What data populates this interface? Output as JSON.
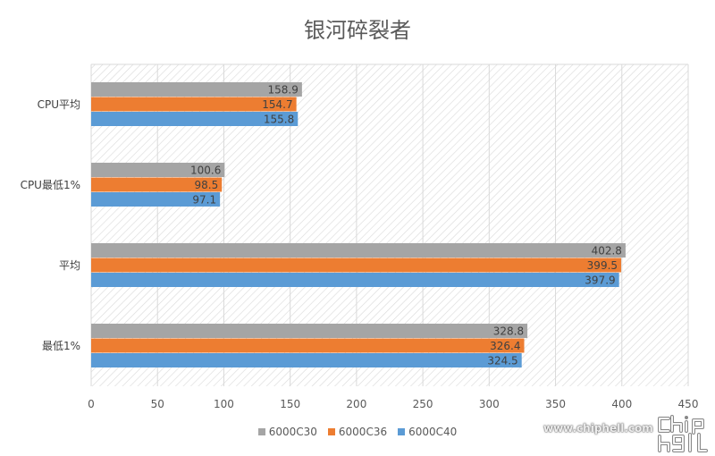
{
  "chart_data": {
    "type": "bar",
    "orientation": "horizontal",
    "title": "银河碎裂者",
    "categories": [
      "CPU平均",
      "CPU最低1%",
      "平均",
      "最低1%"
    ],
    "series": [
      {
        "name": "6000C30",
        "color": "#a5a5a5",
        "values": [
          158.9,
          100.6,
          402.8,
          328.8
        ]
      },
      {
        "name": "6000C36",
        "color": "#ed7d31",
        "values": [
          154.7,
          98.5,
          399.5,
          326.4
        ]
      },
      {
        "name": "6000C40",
        "color": "#5b9bd5",
        "values": [
          155.8,
          97.1,
          397.9,
          324.5
        ]
      }
    ],
    "xlim": [
      0,
      450
    ],
    "xticks": [
      0,
      50,
      100,
      150,
      200,
      250,
      300,
      350,
      400,
      450
    ],
    "grid": true,
    "legend": "bottom",
    "xlabel": "",
    "ylabel": ""
  },
  "watermark": {
    "url": "www.chiphell.com",
    "logo": "chip hell"
  }
}
